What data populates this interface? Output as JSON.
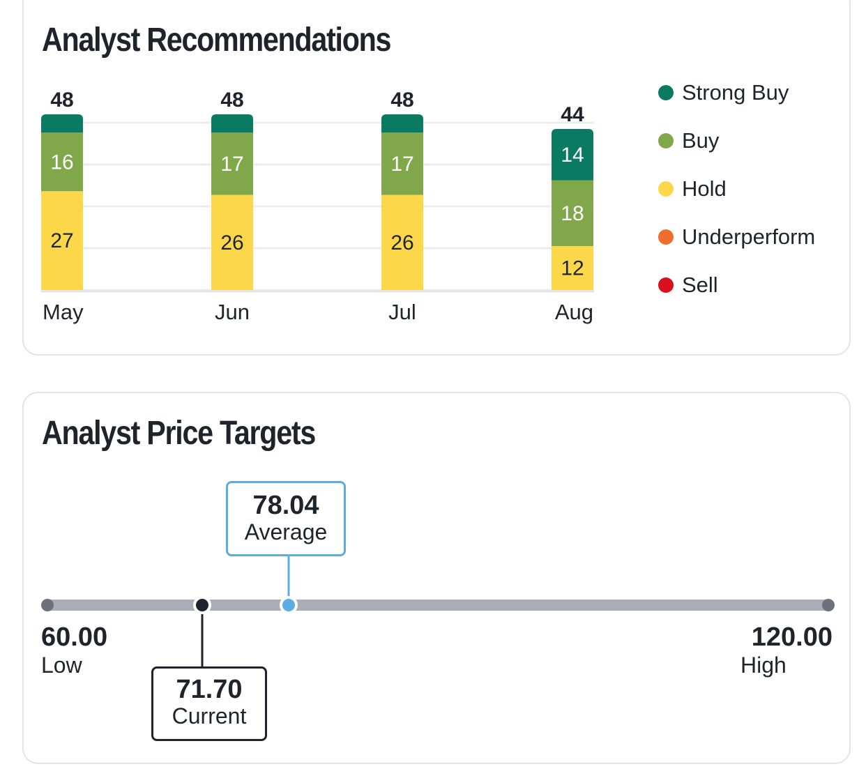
{
  "recommendations": {
    "title": "Analyst Recommendations",
    "legend": [
      {
        "label": "Strong Buy",
        "color": "#0a7a63"
      },
      {
        "label": "Buy",
        "color": "#80a84a"
      },
      {
        "label": "Hold",
        "color": "#fdd74a"
      },
      {
        "label": "Underperform",
        "color": "#ee6f2d"
      },
      {
        "label": "Sell",
        "color": "#d9101d"
      }
    ]
  },
  "chart_data": {
    "type": "bar",
    "stacked": true,
    "title": "Analyst Recommendations",
    "categories": [
      "May",
      "Jun",
      "Jul",
      "Aug"
    ],
    "totals": [
      48,
      48,
      48,
      44
    ],
    "series": [
      {
        "name": "Hold",
        "values": [
          27,
          26,
          26,
          12
        ],
        "color": "#fdd74a"
      },
      {
        "name": "Buy",
        "values": [
          16,
          17,
          17,
          18
        ],
        "color": "#80a84a"
      },
      {
        "name": "Strong Buy",
        "values": [
          5,
          5,
          5,
          14
        ],
        "color": "#0a7a63"
      }
    ],
    "ylim": [
      0,
      48
    ],
    "grid": true,
    "legend_position": "right"
  },
  "price_targets": {
    "title": "Analyst Price Targets",
    "low": {
      "value": "60.00",
      "label": "Low"
    },
    "high": {
      "value": "120.00",
      "label": "High"
    },
    "current": {
      "value": "71.70",
      "label": "Current"
    },
    "average": {
      "value": "78.04",
      "label": "Average"
    },
    "track_color": "#a9adb5",
    "average_color": "#5dace2",
    "current_color": "#1f232b"
  }
}
